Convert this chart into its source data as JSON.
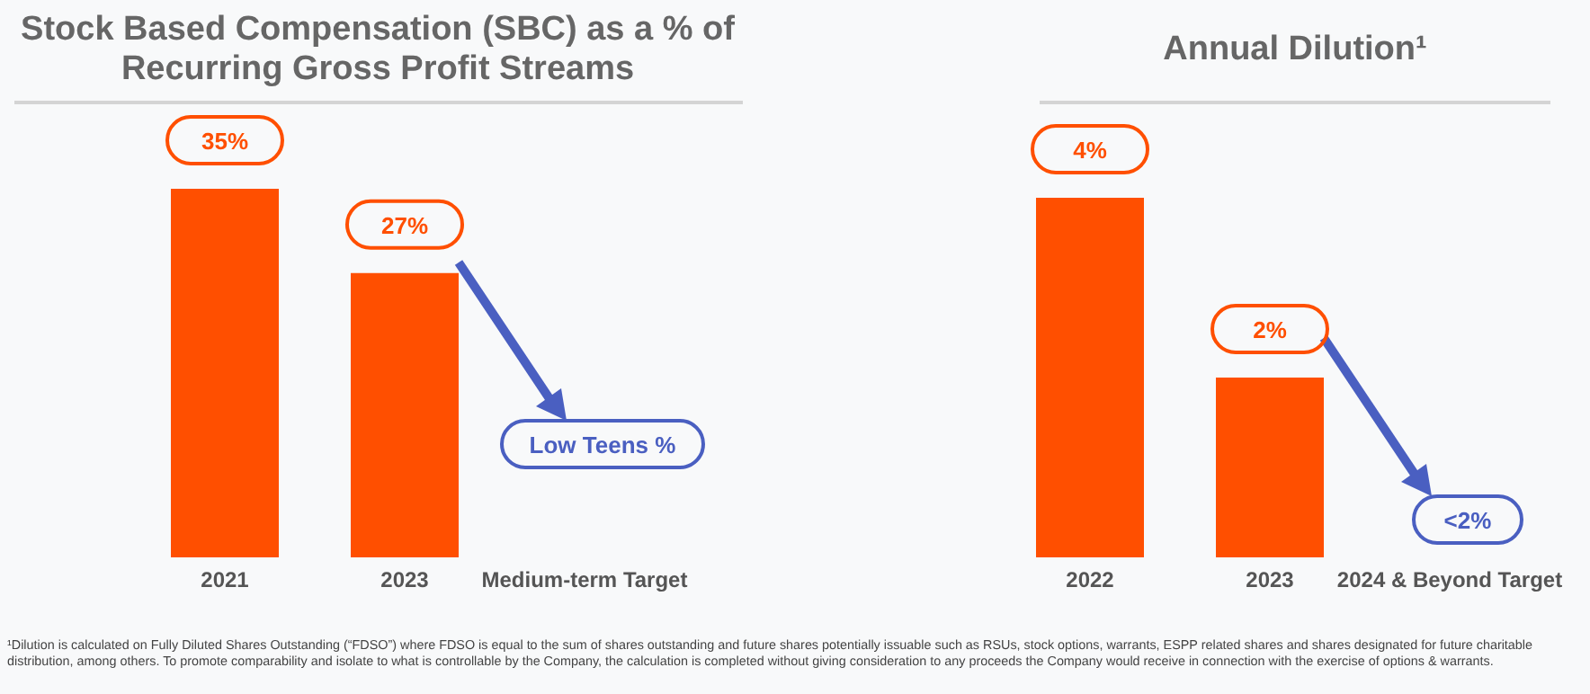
{
  "chart_data": [
    {
      "type": "bar",
      "title": "Stock Based Compensation (SBC) as a % of Recurring Gross Profit Streams",
      "categories": [
        "2021",
        "2023",
        "Medium-term Target"
      ],
      "values": [
        35,
        27,
        null
      ],
      "value_labels": [
        "35%",
        "27%",
        null
      ],
      "color": "#ff4f00",
      "tick_labels": "x",
      "grid": false,
      "legend": false,
      "annotations": [
        "Low Teens %"
      ]
    },
    {
      "type": "bar",
      "title": "Annual Dilution¹",
      "categories": [
        "2022",
        "2023",
        "2024 & Beyond Target"
      ],
      "values": [
        4,
        2,
        null
      ],
      "value_labels": [
        "4%",
        "2%",
        null
      ],
      "color": "#ff4f00",
      "tick_labels": "x",
      "grid": false,
      "legend": false,
      "annotations": [
        "<2%",
        "¹Dilution is calculated on Fully Diluted Shares Outstanding (“FDSO”) where FDSO is equal to the sum of shares outstanding and future shares potentially issuable such as RSUs, stock options, warrants, ESPP related shares and shares designated for future charitable distribution, among others. To promote comparability and isolate to what is controllable by the Company, the calculation is completed without giving consideration to any proceeds the Company would receive in connection with the exercise of options & warrants."
      ]
    }
  ]
}
